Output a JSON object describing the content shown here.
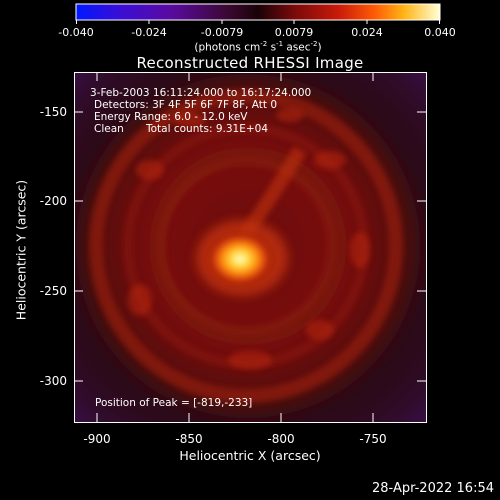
{
  "colorbar": {
    "ticks": [
      "-0.040",
      "-0.024",
      "-0.0079",
      "0.0079",
      "0.024",
      "0.040"
    ],
    "units_prefix": "(photons cm",
    "units_exp1": "-2",
    "units_mid1": " s",
    "units_exp2": "-1",
    "units_mid2": " asec",
    "units_exp3": "-2",
    "units_suffix": ")"
  },
  "title": "Reconstructed RHESSI Image",
  "info": {
    "time_range": "3-Feb-2003 16:11:24.000 to 16:17:24.000",
    "detectors": "Detectors: 3F 4F 5F 6F 7F 8F, Att 0",
    "energy": "Energy Range: 6.0 - 12.0 keV",
    "clean_label": "Clean",
    "total_counts": "Total counts: 9.31E+04",
    "peak": "Position of Peak = [-819,-233]"
  },
  "axes": {
    "xlabel": "Heliocentric X (arcsec)",
    "ylabel": "Heliocentric Y (arcsec)",
    "xticks": [
      "-900",
      "-850",
      "-800",
      "-750"
    ],
    "yticks": [
      "-150",
      "-200",
      "-250",
      "-300"
    ]
  },
  "timestamp": "28-Apr-2022 16:54"
}
